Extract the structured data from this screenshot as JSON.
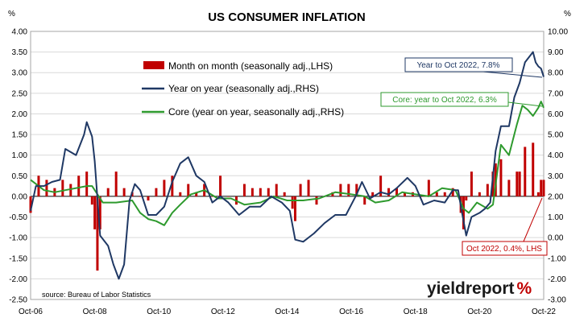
{
  "chart_data": {
    "type": "bar",
    "title": "US CONSUMER INFLATION",
    "left_axis_unit": "%",
    "right_axis_unit": "%",
    "y_left_lim": [
      -2.5,
      4.0
    ],
    "y_right_lim": [
      -3.0,
      10.0
    ],
    "y_left_ticks": [
      "4.00",
      "3.50",
      "3.00",
      "2.50",
      "2.00",
      "1.50",
      "1.00",
      "0.50",
      "0.00",
      "-0.50",
      "-1.00",
      "-1.50",
      "-2.00",
      "-2.50"
    ],
    "y_right_ticks": [
      "10.00",
      "9.00",
      "8.00",
      "7.00",
      "6.00",
      "5.00",
      "4.00",
      "3.00",
      "2.00",
      "1.00",
      "0.00",
      "-1.00",
      "-2.00",
      "-3.00"
    ],
    "x_ticks": [
      "Oct-06",
      "Oct-08",
      "Oct-10",
      "Oct-12",
      "Oct-14",
      "Oct-16",
      "Oct-18",
      "Oct-20",
      "Oct-22"
    ],
    "grid": true,
    "legend_position": "top-left",
    "x_start": "2006-10",
    "x_end": "2022-10",
    "series": [
      {
        "name": "Month on month (seasonally adj.,LHS)",
        "kind": "bar",
        "axis": "left",
        "color": "#c00000",
        "x": [
          "2006-10",
          "2007-01",
          "2007-04",
          "2007-07",
          "2007-10",
          "2008-01",
          "2008-04",
          "2008-07",
          "2008-09",
          "2008-10",
          "2008-11",
          "2008-12",
          "2009-03",
          "2009-06",
          "2009-09",
          "2009-12",
          "2010-03",
          "2010-06",
          "2010-09",
          "2010-12",
          "2011-03",
          "2011-06",
          "2011-09",
          "2011-12",
          "2012-03",
          "2012-06",
          "2012-09",
          "2012-12",
          "2013-03",
          "2013-06",
          "2013-09",
          "2013-12",
          "2014-03",
          "2014-06",
          "2014-09",
          "2014-12",
          "2015-01",
          "2015-03",
          "2015-06",
          "2015-09",
          "2015-12",
          "2016-03",
          "2016-06",
          "2016-09",
          "2016-12",
          "2017-03",
          "2017-06",
          "2017-09",
          "2017-12",
          "2018-03",
          "2018-06",
          "2018-09",
          "2018-12",
          "2019-03",
          "2019-06",
          "2019-09",
          "2019-12",
          "2020-03",
          "2020-04",
          "2020-05",
          "2020-07",
          "2020-10",
          "2021-01",
          "2021-03",
          "2021-04",
          "2021-06",
          "2021-09",
          "2021-12",
          "2022-01",
          "2022-03",
          "2022-06",
          "2022-07",
          "2022-08",
          "2022-09",
          "2022-10"
        ],
        "values": [
          -0.4,
          0.5,
          0.4,
          0.2,
          0.4,
          0.3,
          0.5,
          0.6,
          -0.2,
          -0.8,
          -1.8,
          -0.8,
          0.2,
          0.6,
          0.2,
          0.1,
          0.0,
          -0.1,
          0.2,
          0.4,
          0.5,
          0.1,
          0.3,
          0.1,
          0.3,
          0.0,
          0.5,
          0.0,
          -0.2,
          0.3,
          0.2,
          0.2,
          0.2,
          0.3,
          0.1,
          -0.3,
          -0.6,
          0.3,
          0.4,
          -0.2,
          0.0,
          0.1,
          0.3,
          0.3,
          0.3,
          -0.2,
          0.1,
          0.5,
          0.2,
          0.2,
          0.1,
          0.1,
          0.0,
          0.4,
          0.1,
          0.1,
          0.2,
          -0.4,
          -0.8,
          -0.1,
          0.6,
          0.1,
          0.3,
          0.6,
          0.8,
          0.9,
          0.4,
          0.6,
          0.6,
          1.2,
          1.3,
          0.0,
          0.1,
          0.4,
          0.4
        ]
      },
      {
        "name": "Year on year (seasonally adj.,RHS)",
        "kind": "line",
        "axis": "right",
        "color": "#1f3864",
        "x": [
          "2006-10",
          "2006-12",
          "2007-03",
          "2007-06",
          "2007-09",
          "2007-11",
          "2008-03",
          "2008-06",
          "2008-07",
          "2008-09",
          "2008-10",
          "2008-12",
          "2009-03",
          "2009-05",
          "2009-07",
          "2009-09",
          "2009-11",
          "2010-01",
          "2010-03",
          "2010-06",
          "2010-09",
          "2010-12",
          "2011-03",
          "2011-06",
          "2011-09",
          "2011-12",
          "2012-03",
          "2012-06",
          "2012-09",
          "2012-12",
          "2013-04",
          "2013-08",
          "2013-12",
          "2014-04",
          "2014-08",
          "2014-11",
          "2015-01",
          "2015-04",
          "2015-08",
          "2015-12",
          "2016-04",
          "2016-08",
          "2016-12",
          "2017-02",
          "2017-05",
          "2017-09",
          "2017-12",
          "2018-03",
          "2018-07",
          "2018-10",
          "2019-01",
          "2019-05",
          "2019-09",
          "2019-12",
          "2020-02",
          "2020-03",
          "2020-05",
          "2020-07",
          "2020-10",
          "2020-12",
          "2021-02",
          "2021-04",
          "2021-06",
          "2021-09",
          "2021-11",
          "2022-01",
          "2022-03",
          "2022-06",
          "2022-07",
          "2022-08",
          "2022-09",
          "2022-10"
        ],
        "values": [
          1.3,
          2.5,
          2.5,
          2.7,
          2.8,
          4.3,
          4.0,
          5.0,
          5.6,
          4.9,
          3.7,
          0.1,
          -0.4,
          -1.3,
          -2.0,
          -1.3,
          1.8,
          2.6,
          2.3,
          1.1,
          1.1,
          1.5,
          2.7,
          3.6,
          3.9,
          3.0,
          2.7,
          1.7,
          2.0,
          1.7,
          1.1,
          1.5,
          1.5,
          2.0,
          1.7,
          1.3,
          -0.1,
          -0.2,
          0.2,
          0.7,
          1.1,
          1.1,
          2.1,
          2.7,
          1.9,
          2.2,
          2.1,
          2.4,
          2.9,
          2.5,
          1.6,
          1.8,
          1.7,
          2.3,
          2.3,
          1.5,
          0.1,
          1.0,
          1.2,
          1.4,
          1.7,
          4.2,
          5.4,
          5.4,
          6.8,
          7.5,
          8.5,
          9.0,
          8.5,
          8.3,
          8.2,
          7.8
        ]
      },
      {
        "name": "Core (year on year, seasonally adj.,RHS)",
        "kind": "line",
        "axis": "right",
        "color": "#2e9a2e",
        "x": [
          "2006-10",
          "2007-03",
          "2007-07",
          "2007-11",
          "2008-03",
          "2008-07",
          "2008-09",
          "2009-01",
          "2009-06",
          "2009-12",
          "2010-03",
          "2010-06",
          "2010-09",
          "2010-12",
          "2011-03",
          "2011-06",
          "2011-10",
          "2012-03",
          "2012-08",
          "2013-01",
          "2013-06",
          "2013-12",
          "2014-05",
          "2014-10",
          "2015-04",
          "2015-10",
          "2016-04",
          "2016-10",
          "2017-03",
          "2017-07",
          "2017-12",
          "2018-05",
          "2018-10",
          "2019-03",
          "2019-08",
          "2020-01",
          "2020-04",
          "2020-06",
          "2020-09",
          "2021-01",
          "2021-03",
          "2021-06",
          "2021-09",
          "2021-12",
          "2022-02",
          "2022-04",
          "2022-06",
          "2022-08",
          "2022-09",
          "2022-10"
        ],
        "values": [
          2.8,
          2.3,
          2.2,
          2.3,
          2.4,
          2.5,
          2.5,
          1.7,
          1.7,
          1.8,
          1.2,
          0.9,
          0.8,
          0.6,
          1.2,
          1.6,
          2.1,
          2.3,
          1.9,
          1.9,
          1.6,
          1.7,
          2.0,
          1.8,
          1.8,
          1.9,
          2.2,
          2.1,
          2.0,
          1.7,
          1.8,
          2.2,
          2.1,
          2.0,
          2.4,
          2.3,
          1.4,
          1.2,
          1.7,
          1.4,
          1.6,
          4.5,
          4.0,
          5.5,
          6.4,
          6.2,
          5.9,
          6.3,
          6.6,
          6.3
        ]
      }
    ],
    "callouts": [
      {
        "text": "Year to Oct 2022, 7.8%",
        "color": "#1f3864"
      },
      {
        "text": "Core: year to Oct 2022, 6.3%",
        "color": "#2e9a2e"
      },
      {
        "text": "Oct 2022, 0.4%, LHS",
        "color": "#c00000"
      }
    ],
    "source": "source: Bureau of Labor Statistics",
    "brand": {
      "word_light": "yield",
      "word_bold": "report",
      "symbol": "%",
      "symbol_color": "#c00000"
    }
  }
}
